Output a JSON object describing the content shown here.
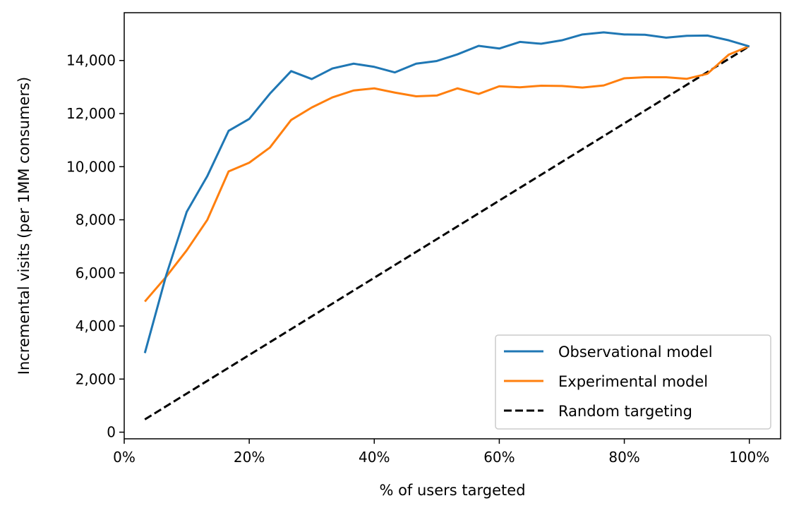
{
  "chart_data": {
    "type": "line",
    "title": "",
    "xlabel": "% of users targeted",
    "ylabel": "Incremental visits (per 1MM consumers)",
    "xlim": [
      0,
      1.05
    ],
    "ylim": [
      -250,
      15800
    ],
    "x_ticks": [
      {
        "value": 0,
        "label": "0%"
      },
      {
        "value": 0.2,
        "label": "20%"
      },
      {
        "value": 0.4,
        "label": "40%"
      },
      {
        "value": 0.6,
        "label": "60%"
      },
      {
        "value": 0.8,
        "label": "80%"
      },
      {
        "value": 1.0,
        "label": "100%"
      }
    ],
    "y_ticks": [
      {
        "value": 0,
        "label": "0"
      },
      {
        "value": 2000,
        "label": "2,000"
      },
      {
        "value": 4000,
        "label": "4,000"
      },
      {
        "value": 6000,
        "label": "6,000"
      },
      {
        "value": 8000,
        "label": "8,000"
      },
      {
        "value": 10000,
        "label": "10,000"
      },
      {
        "value": 12000,
        "label": "12,000"
      },
      {
        "value": 14000,
        "label": "14,000"
      }
    ],
    "grid": false,
    "legend": {
      "placement": "lower-right"
    },
    "series": [
      {
        "name": "Observational model",
        "color": "#1f77b4",
        "style": "solid",
        "x": [
          0.033,
          0.067,
          0.1,
          0.133,
          0.167,
          0.2,
          0.233,
          0.267,
          0.3,
          0.333,
          0.367,
          0.4,
          0.433,
          0.467,
          0.5,
          0.533,
          0.567,
          0.6,
          0.633,
          0.667,
          0.7,
          0.733,
          0.767,
          0.8,
          0.833,
          0.867,
          0.9,
          0.933,
          0.967,
          1.0
        ],
        "y": [
          2980,
          5900,
          8300,
          9650,
          11350,
          11800,
          12750,
          13600,
          13300,
          13700,
          13880,
          13760,
          13550,
          13880,
          13980,
          14230,
          14550,
          14450,
          14700,
          14630,
          14760,
          14980,
          15060,
          14980,
          14970,
          14860,
          14930,
          14940,
          14760,
          14530
        ]
      },
      {
        "name": "Experimental model",
        "color": "#ff7f0e",
        "style": "solid",
        "x": [
          0.033,
          0.067,
          0.1,
          0.133,
          0.167,
          0.2,
          0.233,
          0.267,
          0.3,
          0.333,
          0.367,
          0.4,
          0.433,
          0.467,
          0.5,
          0.533,
          0.567,
          0.6,
          0.633,
          0.667,
          0.7,
          0.733,
          0.767,
          0.8,
          0.833,
          0.867,
          0.9,
          0.933,
          0.967,
          1.0
        ],
        "y": [
          4920,
          5850,
          6850,
          8000,
          9820,
          10150,
          10720,
          11760,
          12230,
          12610,
          12870,
          12950,
          12790,
          12650,
          12680,
          12950,
          12740,
          13030,
          12990,
          13050,
          13040,
          12980,
          13060,
          13330,
          13370,
          13370,
          13310,
          13500,
          14220,
          14540
        ]
      },
      {
        "name": "Random targeting",
        "color": "#000000",
        "style": "dashed",
        "x": [
          0.033,
          1.0
        ],
        "y": [
          480,
          14540
        ]
      }
    ]
  }
}
